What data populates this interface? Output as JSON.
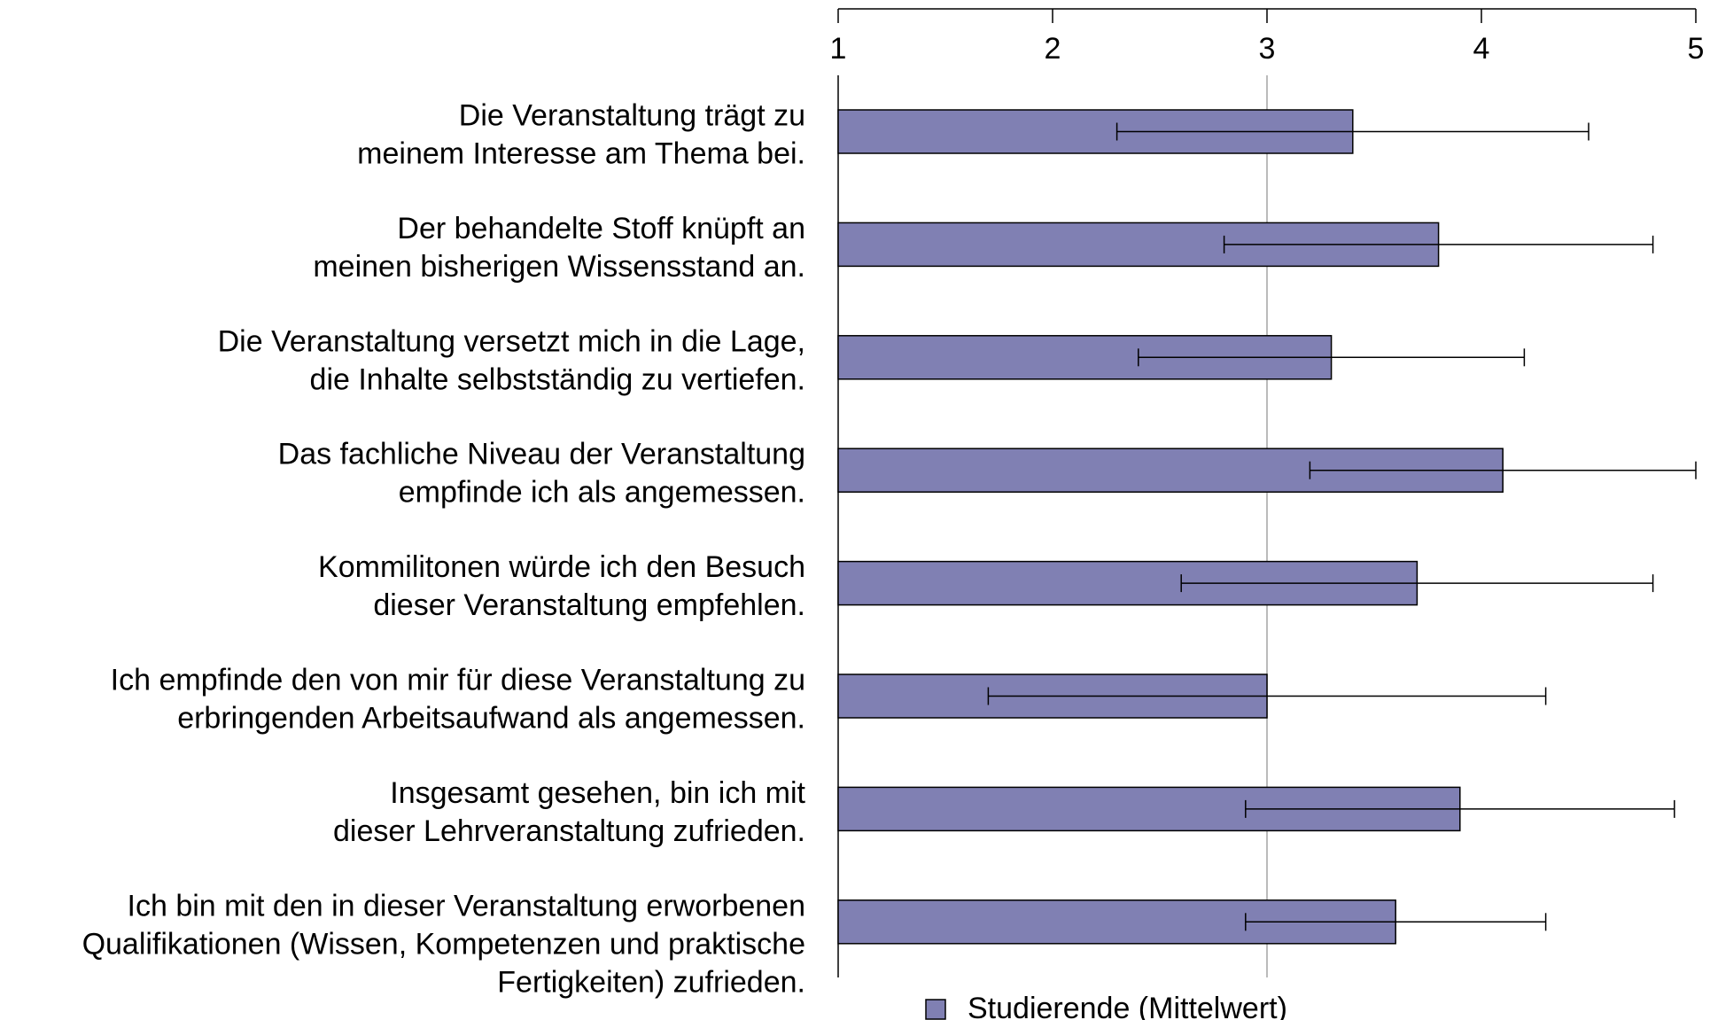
{
  "chart_data": {
    "type": "bar",
    "orientation": "horizontal",
    "categories": [
      [
        "Die Veranstaltung trägt zu",
        "meinem Interesse am Thema bei."
      ],
      [
        "Der behandelte Stoff knüpft an",
        "meinen bisherigen Wissensstand an."
      ],
      [
        "Die Veranstaltung versetzt mich in die Lage,",
        "die Inhalte selbstständig zu vertiefen."
      ],
      [
        "Das fachliche Niveau der Veranstaltung",
        "empfinde ich als angemessen."
      ],
      [
        "Kommilitonen würde ich den Besuch",
        "dieser Veranstaltung empfehlen."
      ],
      [
        "Ich empfinde den von mir für diese Veranstaltung zu",
        "erbringenden Arbeitsaufwand als angemessen."
      ],
      [
        "Insgesamt gesehen, bin ich mit",
        "dieser Lehrveranstaltung zufrieden."
      ],
      [
        "Ich bin mit den in dieser Veranstaltung erworbenen",
        "Qualifikationen (Wissen, Kompetenzen  und praktische",
        "Fertigkeiten) zufrieden."
      ]
    ],
    "series": [
      {
        "name": "Studierende (Mittelwert)",
        "color": "#8080b3",
        "values": [
          3.4,
          3.8,
          3.3,
          4.1,
          3.7,
          3.0,
          3.9,
          3.6
        ],
        "errors": [
          1.1,
          1.0,
          0.9,
          0.9,
          1.1,
          1.3,
          1.0,
          0.7
        ]
      }
    ],
    "xlim": [
      1,
      5
    ],
    "xticks": [
      1,
      2,
      3,
      4,
      5
    ],
    "reference_line": 3,
    "legend": "bottom"
  }
}
